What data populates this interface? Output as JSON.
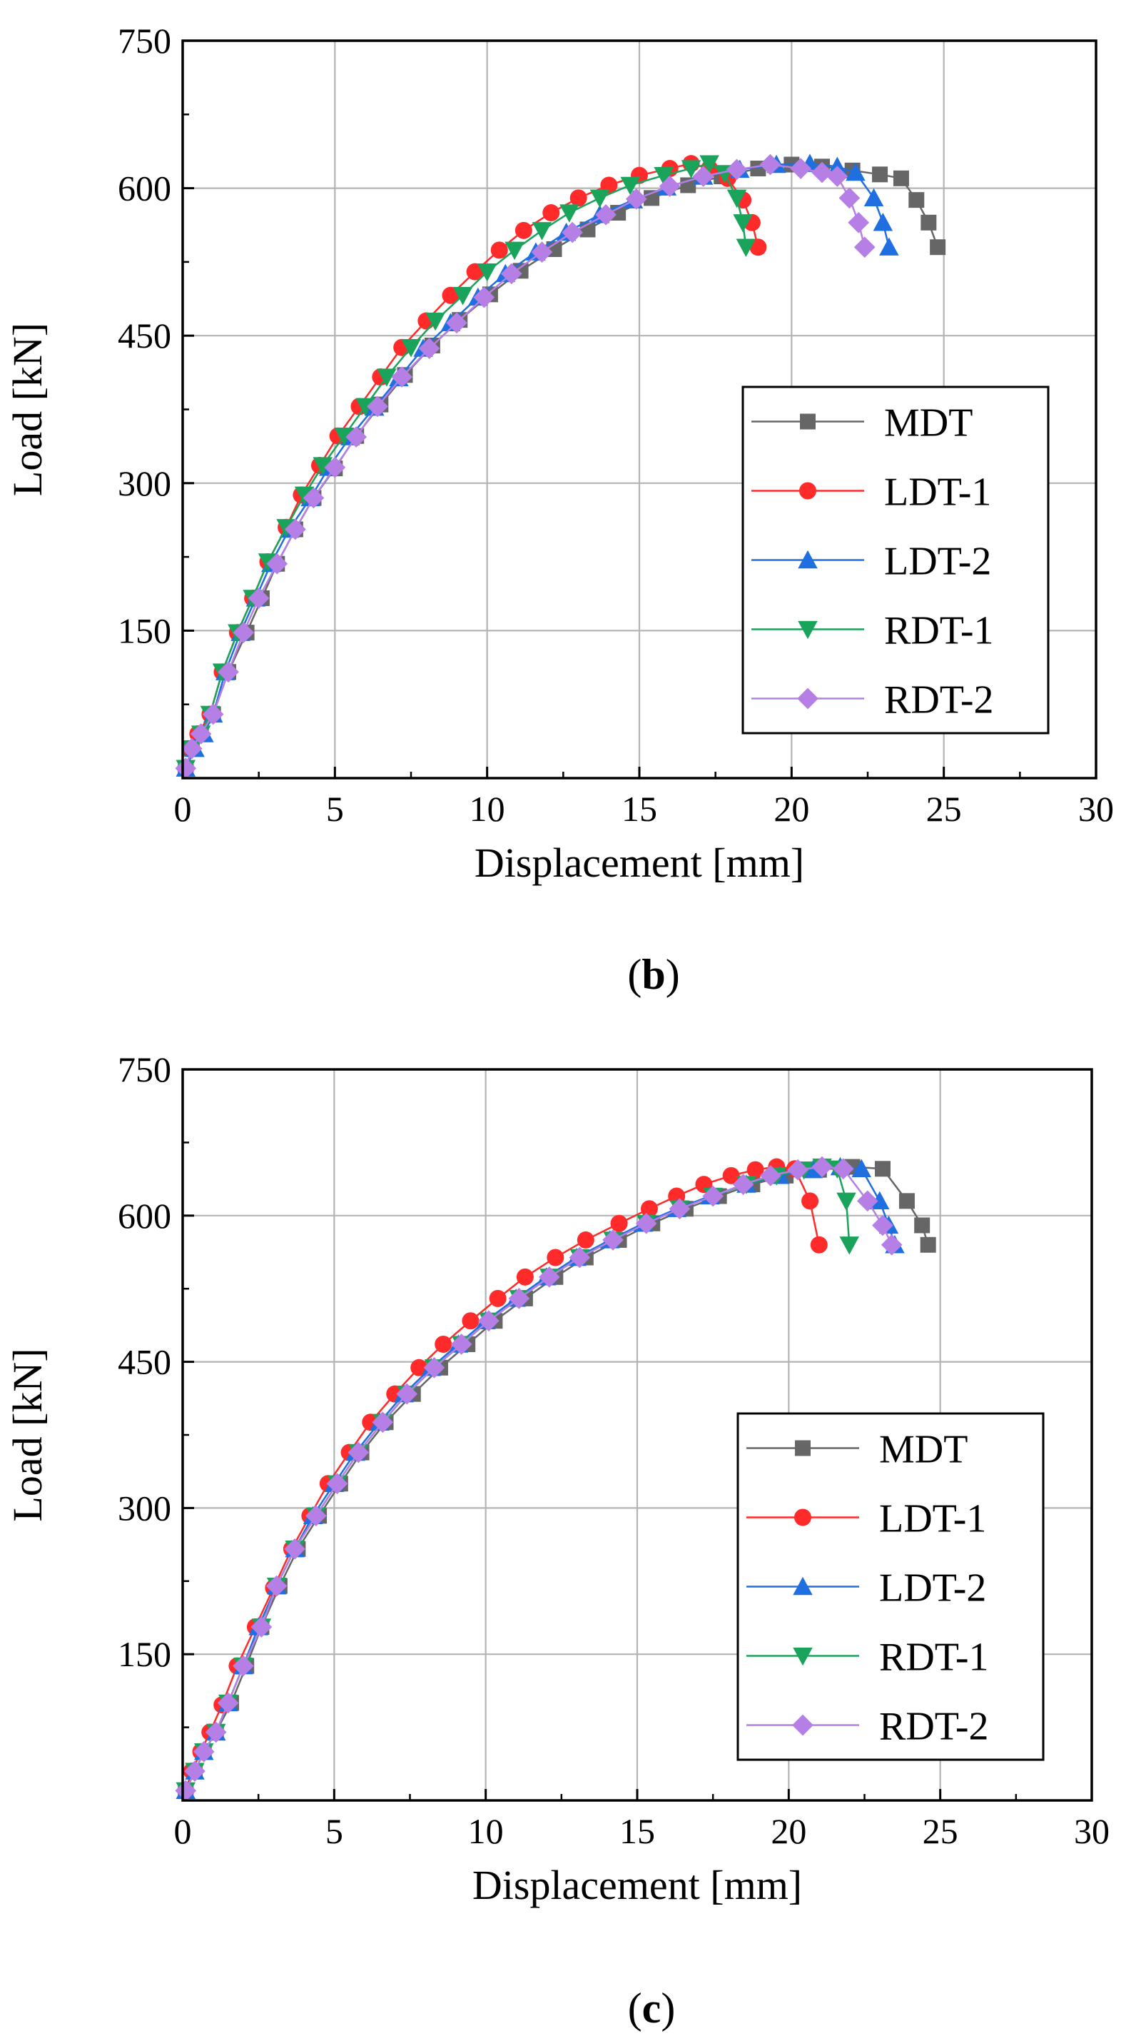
{
  "figure": {
    "panels": [
      {
        "caption_open": "(",
        "caption_letter": "b",
        "caption_close": ")"
      },
      {
        "caption_open": "(",
        "caption_letter": "c",
        "caption_close": ")"
      }
    ]
  },
  "chart_data": [
    {
      "type": "line",
      "panel": "b",
      "xlabel": "Displacement [mm]",
      "ylabel": "Load [kN]",
      "xlim": [
        0,
        30
      ],
      "ylim": [
        0,
        750
      ],
      "xticks": [
        0,
        5,
        10,
        15,
        20,
        25,
        30
      ],
      "yticks": [
        150,
        300,
        450,
        600,
        750
      ],
      "grid": true,
      "legend_position": "center-right",
      "series": [
        {
          "name": "MDT",
          "color": "#666666",
          "marker": "square",
          "x": [
            0.1,
            0.3,
            0.6,
            1.0,
            1.5,
            2.1,
            2.6,
            3.1,
            3.7,
            4.3,
            5.0,
            5.7,
            6.5,
            7.3,
            8.2,
            9.1,
            10.1,
            11.1,
            12.2,
            13.3,
            14.3,
            15.4,
            16.6,
            17.7,
            18.9,
            20.0,
            21.0,
            22.0,
            22.9,
            23.6,
            24.1,
            24.5,
            24.8
          ],
          "y": [
            10,
            30,
            45,
            65,
            108,
            148,
            183,
            218,
            253,
            285,
            315,
            348,
            380,
            410,
            440,
            466,
            492,
            516,
            538,
            558,
            575,
            590,
            603,
            612,
            620,
            624,
            622,
            618,
            614,
            610,
            588,
            565,
            540
          ]
        },
        {
          "name": "LDT-1",
          "color": "#ff2a2a",
          "marker": "circle",
          "x": [
            0.1,
            0.3,
            0.5,
            0.9,
            1.3,
            1.8,
            2.3,
            2.8,
            3.4,
            3.9,
            4.5,
            5.1,
            5.8,
            6.5,
            7.2,
            8.0,
            8.8,
            9.6,
            10.4,
            11.2,
            12.1,
            13.0,
            14.0,
            15.0,
            16.0,
            16.7,
            17.3,
            17.9,
            18.4,
            18.7,
            18.9
          ],
          "y": [
            10,
            30,
            45,
            65,
            108,
            148,
            183,
            220,
            255,
            288,
            318,
            348,
            378,
            408,
            438,
            465,
            491,
            515,
            537,
            557,
            575,
            590,
            603,
            613,
            620,
            625,
            620,
            610,
            588,
            565,
            540
          ]
        },
        {
          "name": "LDT-2",
          "color": "#1f6fe0",
          "marker": "triangle-up",
          "x": [
            0.1,
            0.4,
            0.7,
            1.0,
            1.4,
            1.9,
            2.4,
            2.9,
            3.5,
            4.2,
            4.8,
            5.5,
            6.3,
            7.1,
            7.9,
            8.8,
            9.7,
            10.6,
            11.6,
            12.6,
            13.7,
            14.8,
            15.9,
            17.1,
            18.3,
            19.5,
            20.6,
            21.5,
            22.1,
            22.7,
            23.0,
            23.2
          ],
          "y": [
            10,
            30,
            45,
            65,
            108,
            148,
            183,
            218,
            253,
            285,
            316,
            347,
            377,
            407,
            437,
            463,
            489,
            513,
            535,
            555,
            573,
            588,
            601,
            612,
            619,
            624,
            625,
            622,
            616,
            590,
            565,
            540
          ]
        },
        {
          "name": "RDT-1",
          "color": "#1aa35a",
          "marker": "triangle-down",
          "x": [
            0.1,
            0.3,
            0.6,
            0.9,
            1.3,
            1.8,
            2.3,
            2.8,
            3.4,
            4.0,
            4.6,
            5.3,
            6.0,
            6.7,
            7.5,
            8.3,
            9.2,
            10.0,
            10.9,
            11.8,
            12.7,
            13.7,
            14.7,
            15.8,
            16.7,
            17.3,
            17.8,
            18.2,
            18.4,
            18.5
          ],
          "y": [
            10,
            30,
            45,
            65,
            108,
            148,
            183,
            220,
            255,
            288,
            318,
            348,
            378,
            408,
            438,
            465,
            491,
            515,
            537,
            557,
            575,
            590,
            603,
            613,
            620,
            625,
            615,
            590,
            565,
            540
          ]
        },
        {
          "name": "RDT-2",
          "color": "#b57fe6",
          "marker": "diamond",
          "x": [
            0.1,
            0.3,
            0.6,
            1.0,
            1.5,
            2.0,
            2.5,
            3.1,
            3.7,
            4.3,
            5.0,
            5.7,
            6.4,
            7.2,
            8.1,
            9.0,
            9.9,
            10.8,
            11.8,
            12.8,
            13.9,
            14.9,
            16.0,
            17.1,
            18.2,
            19.3,
            20.3,
            21.0,
            21.5,
            21.9,
            22.2,
            22.4
          ],
          "y": [
            10,
            30,
            45,
            65,
            108,
            148,
            183,
            218,
            253,
            285,
            316,
            347,
            378,
            408,
            437,
            463,
            489,
            513,
            535,
            555,
            573,
            589,
            602,
            612,
            619,
            624,
            620,
            616,
            612,
            590,
            565,
            540
          ]
        }
      ]
    },
    {
      "type": "line",
      "panel": "c",
      "xlabel": "Displacement [mm]",
      "ylabel": "Load [kN]",
      "xlim": [
        0,
        30
      ],
      "ylim": [
        0,
        750
      ],
      "xticks": [
        0,
        5,
        10,
        15,
        20,
        25,
        30
      ],
      "yticks": [
        150,
        300,
        450,
        600,
        750
      ],
      "grid": true,
      "legend_position": "center-right",
      "series": [
        {
          "name": "MDT",
          "color": "#666666",
          "marker": "square",
          "x": [
            0.1,
            0.4,
            0.7,
            1.1,
            1.6,
            2.1,
            2.6,
            3.2,
            3.8,
            4.5,
            5.2,
            5.9,
            6.7,
            7.6,
            8.5,
            9.4,
            10.3,
            11.3,
            12.3,
            13.3,
            14.4,
            15.5,
            16.6,
            17.7,
            18.8,
            19.9,
            21.0,
            22.1,
            23.1,
            23.9,
            24.4,
            24.6
          ],
          "y": [
            10,
            30,
            50,
            70,
            100,
            138,
            178,
            220,
            258,
            292,
            325,
            357,
            388,
            417,
            444,
            468,
            492,
            515,
            537,
            557,
            575,
            592,
            607,
            620,
            632,
            641,
            647,
            650,
            648,
            615,
            590,
            570
          ]
        },
        {
          "name": "LDT-1",
          "color": "#ff2a2a",
          "marker": "circle",
          "x": [
            0.1,
            0.3,
            0.6,
            0.9,
            1.3,
            1.8,
            2.4,
            3.0,
            3.6,
            4.2,
            4.8,
            5.5,
            6.2,
            7.0,
            7.8,
            8.6,
            9.5,
            10.4,
            11.3,
            12.3,
            13.3,
            14.4,
            15.4,
            16.3,
            17.2,
            18.1,
            18.9,
            19.6,
            20.2,
            20.7,
            21.0
          ],
          "y": [
            10,
            30,
            50,
            70,
            98,
            138,
            178,
            218,
            258,
            292,
            325,
            357,
            388,
            417,
            444,
            468,
            492,
            515,
            537,
            557,
            575,
            592,
            607,
            620,
            632,
            641,
            647,
            650,
            648,
            615,
            570
          ]
        },
        {
          "name": "LDT-2",
          "color": "#1f6fe0",
          "marker": "triangle-up",
          "x": [
            0.1,
            0.4,
            0.7,
            1.1,
            1.5,
            2.0,
            2.5,
            3.1,
            3.7,
            4.3,
            5.0,
            5.7,
            6.5,
            7.3,
            8.2,
            9.1,
            10.0,
            11.0,
            12.0,
            13.0,
            14.1,
            15.2,
            16.3,
            17.4,
            18.6,
            19.7,
            20.8,
            21.7,
            22.4,
            23.0,
            23.3,
            23.5
          ],
          "y": [
            10,
            30,
            50,
            70,
            100,
            138,
            178,
            220,
            258,
            292,
            325,
            357,
            388,
            417,
            444,
            468,
            492,
            515,
            537,
            557,
            575,
            592,
            607,
            620,
            632,
            641,
            647,
            650,
            648,
            615,
            590,
            570
          ]
        },
        {
          "name": "RDT-1",
          "color": "#1aa35a",
          "marker": "triangle-down",
          "x": [
            0.1,
            0.4,
            0.7,
            1.1,
            1.5,
            2.0,
            2.6,
            3.1,
            3.7,
            4.4,
            5.1,
            5.8,
            6.6,
            7.4,
            8.3,
            9.2,
            10.1,
            11.1,
            12.1,
            13.1,
            14.2,
            15.3,
            16.4,
            17.5,
            18.6,
            19.6,
            20.5,
            21.1,
            21.6,
            21.9,
            22.0
          ],
          "y": [
            10,
            30,
            50,
            70,
            100,
            138,
            178,
            220,
            258,
            292,
            325,
            357,
            388,
            417,
            444,
            468,
            492,
            515,
            537,
            557,
            575,
            592,
            607,
            620,
            632,
            641,
            647,
            650,
            648,
            615,
            570
          ]
        },
        {
          "name": "RDT-2",
          "color": "#b57fe6",
          "marker": "diamond",
          "x": [
            0.1,
            0.4,
            0.7,
            1.1,
            1.5,
            2.0,
            2.6,
            3.1,
            3.7,
            4.4,
            5.1,
            5.8,
            6.6,
            7.4,
            8.3,
            9.2,
            10.1,
            11.1,
            12.1,
            13.1,
            14.2,
            15.3,
            16.4,
            17.5,
            18.5,
            19.4,
            20.3,
            21.1,
            21.8,
            22.6,
            23.1,
            23.4
          ],
          "y": [
            10,
            30,
            50,
            70,
            100,
            138,
            178,
            220,
            258,
            292,
            325,
            357,
            388,
            417,
            444,
            468,
            492,
            515,
            537,
            557,
            575,
            592,
            607,
            620,
            632,
            641,
            647,
            650,
            648,
            615,
            590,
            570
          ]
        }
      ]
    }
  ]
}
